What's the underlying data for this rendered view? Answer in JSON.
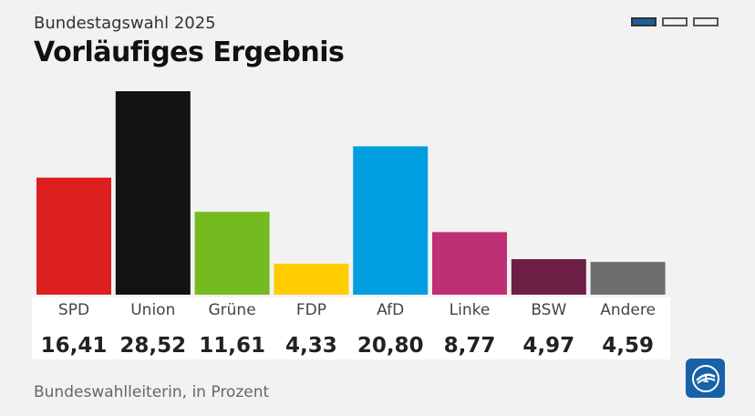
{
  "header": {
    "subtitle": "Bundestagswahl 2025",
    "title": "Vorläufiges Ergebnis"
  },
  "pager": {
    "count": 3,
    "active_index": 0,
    "active_color": "#1b5f9e"
  },
  "footer": {
    "source": "Bundeswahlleiterin, in Prozent"
  },
  "logo": {
    "icon": "tagesschau-logo-icon",
    "color": "#1762a8"
  },
  "chart_data": {
    "type": "bar",
    "categories": [
      "SPD",
      "Union",
      "Grüne",
      "FDP",
      "AfD",
      "Linke",
      "BSW",
      "Andere"
    ],
    "values": [
      16.41,
      28.52,
      11.61,
      4.33,
      20.8,
      8.77,
      4.97,
      4.59
    ],
    "value_labels": [
      "16,41",
      "28,52",
      "11,61",
      "4,33",
      "20,80",
      "8,77",
      "4,97",
      "4,59"
    ],
    "colors": [
      "#dd1e1e",
      "#121212",
      "#75bb1f",
      "#ffcc00",
      "#009ee0",
      "#be3075",
      "#6d1f46",
      "#6e6e6e"
    ],
    "title": "",
    "xlabel": "",
    "ylabel": "",
    "ylim": [
      0,
      28.52
    ],
    "grid": false,
    "legend": "none"
  }
}
